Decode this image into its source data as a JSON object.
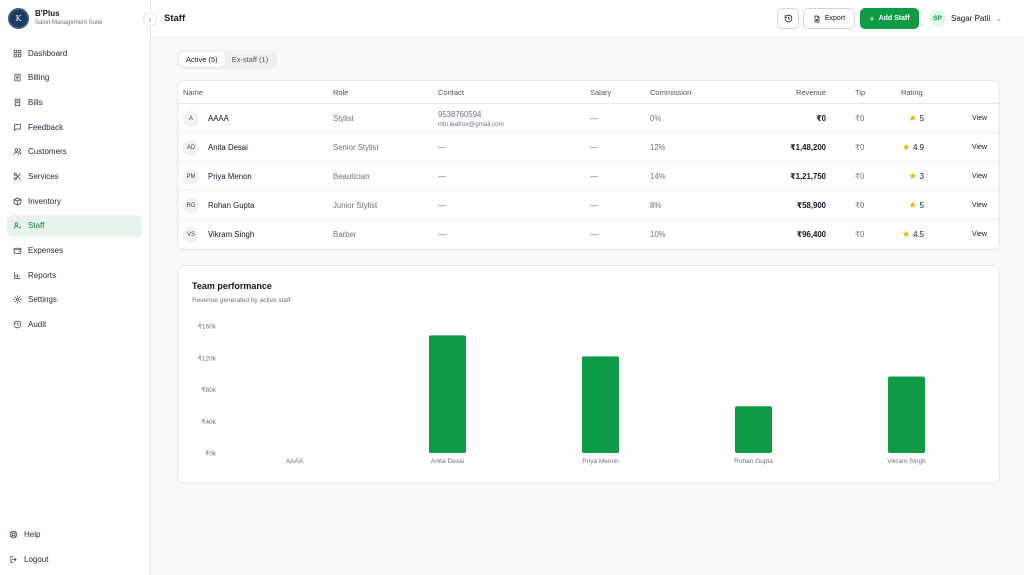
{
  "brand": {
    "logo_text": "K",
    "name": "B'Plus",
    "subtitle": "Salon Management Suite"
  },
  "sidebar": {
    "items": [
      {
        "label": "Dashboard",
        "icon": "dashboard-icon"
      },
      {
        "label": "Billing",
        "icon": "billing-icon"
      },
      {
        "label": "Bills",
        "icon": "bills-icon"
      },
      {
        "label": "Feedback",
        "icon": "feedback-icon"
      },
      {
        "label": "Customers",
        "icon": "customers-icon"
      },
      {
        "label": "Services",
        "icon": "scissors-icon"
      },
      {
        "label": "Inventory",
        "icon": "box-icon"
      },
      {
        "label": "Staff",
        "icon": "staff-icon",
        "active": true
      },
      {
        "label": "Expenses",
        "icon": "wallet-icon"
      },
      {
        "label": "Reports",
        "icon": "chart-icon"
      },
      {
        "label": "Settings",
        "icon": "gear-icon"
      },
      {
        "label": "Audit",
        "icon": "history-icon"
      }
    ],
    "bottom": [
      {
        "label": "Help",
        "icon": "help-icon"
      },
      {
        "label": "Logout",
        "icon": "logout-icon"
      }
    ]
  },
  "header": {
    "title": "Staff",
    "export_label": "Export",
    "add_label": "Add Staff",
    "user": {
      "initials": "SP",
      "name": "Sagar Patil"
    }
  },
  "tabs": [
    {
      "label": "Active (5)",
      "active": true
    },
    {
      "label": "Ex-staff (1)",
      "active": false
    }
  ],
  "table": {
    "columns": [
      "Name",
      "Role",
      "Contact",
      "Salary",
      "Commission",
      "Revenue",
      "Tip",
      "Rating"
    ],
    "rows": [
      {
        "initials": "A",
        "name": "AAAA",
        "role": "Stylist",
        "phone": "9538760594",
        "email": "info.leafrox@gmail.com",
        "salary": "—",
        "commission": "0%",
        "revenue": "₹0",
        "tip": "₹0",
        "rating": "5",
        "action": "View"
      },
      {
        "initials": "AD",
        "name": "Anita Desai",
        "role": "Senior Stylist",
        "phone": "—",
        "email": "",
        "salary": "—",
        "commission": "12%",
        "revenue": "₹1,48,200",
        "tip": "₹0",
        "rating": "4.9",
        "action": "View"
      },
      {
        "initials": "PM",
        "name": "Priya Menon",
        "role": "Beautician",
        "phone": "—",
        "email": "",
        "salary": "—",
        "commission": "14%",
        "revenue": "₹1,21,750",
        "tip": "₹0",
        "rating": "3",
        "action": "View"
      },
      {
        "initials": "RG",
        "name": "Rohan Gupta",
        "role": "Junior Stylist",
        "phone": "—",
        "email": "",
        "salary": "—",
        "commission": "8%",
        "revenue": "₹58,900",
        "tip": "₹0",
        "rating": "5",
        "action": "View"
      },
      {
        "initials": "VS",
        "name": "Vikram Singh",
        "role": "Barber",
        "phone": "—",
        "email": "",
        "salary": "—",
        "commission": "10%",
        "revenue": "₹96,400",
        "tip": "₹0",
        "rating": "4.5",
        "action": "View"
      }
    ]
  },
  "performance": {
    "title": "Team performance",
    "subtitle": "Revenue generated by active staff"
  },
  "chart_data": {
    "type": "bar",
    "categories": [
      "AAAA",
      "Anita Desai",
      "Priya Menon",
      "Rohan Gupta",
      "Vikram Singh"
    ],
    "values": [
      0,
      148200,
      121750,
      58900,
      96400
    ],
    "yticks": [
      0,
      40000,
      80000,
      120000,
      160000
    ],
    "ytick_labels": [
      "₹0k",
      "₹40k",
      "₹80k",
      "₹120k",
      "₹160k"
    ],
    "ylim": [
      0,
      160000
    ],
    "color": "#0f9a45",
    "grid": false
  },
  "colors": {
    "accent": "#0f9a45",
    "active_nav_bg": "#e8f3ec",
    "star": "#f5b301"
  }
}
